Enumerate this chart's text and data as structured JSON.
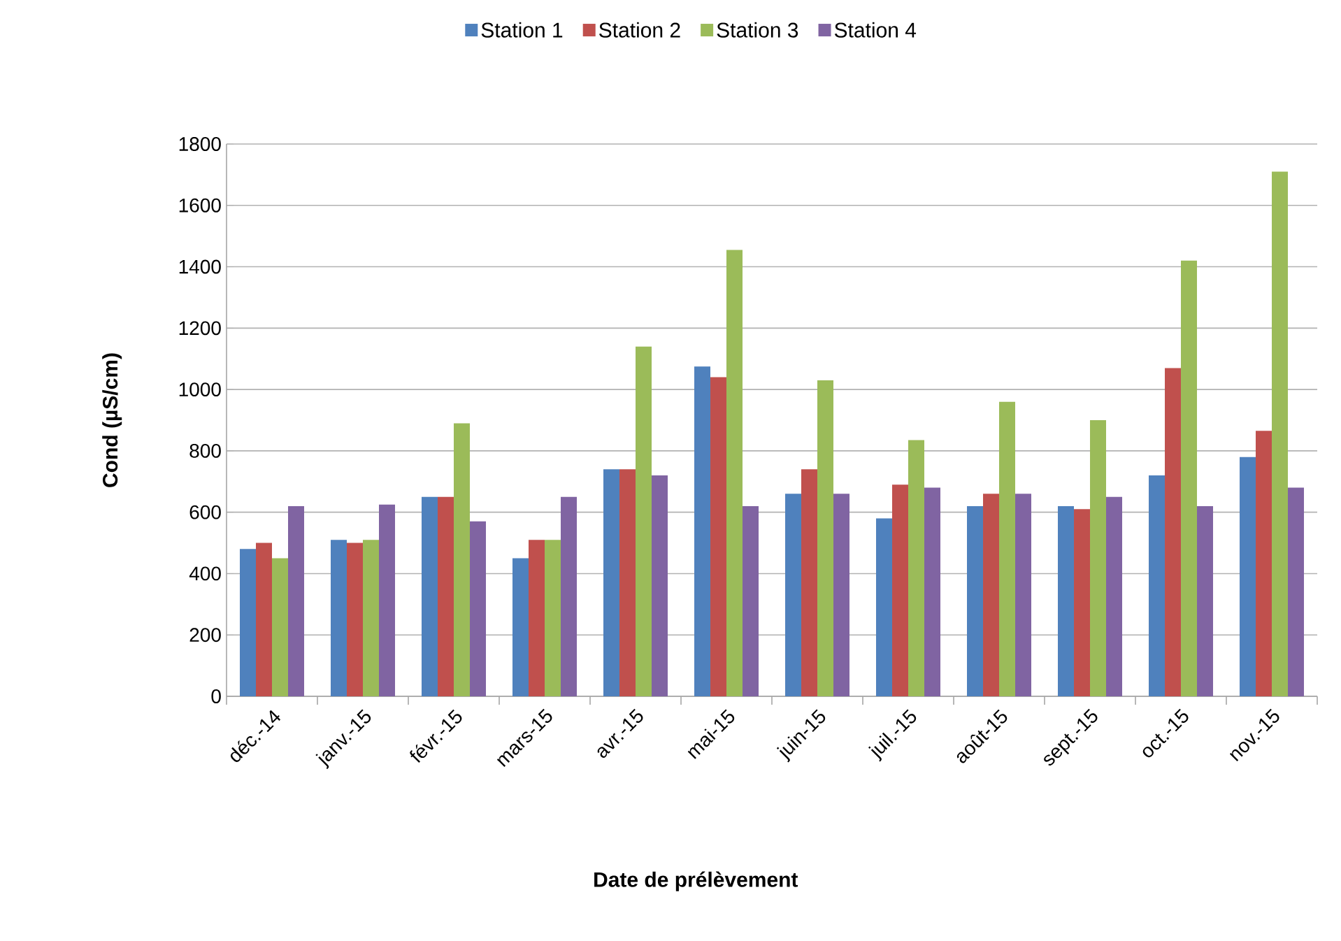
{
  "chart_data": {
    "type": "bar",
    "xlabel": "Date de prélèvement",
    "ylabel": "Cond (µS/cm)",
    "categories": [
      "déc.-14",
      "janv.-15",
      "févr.-15",
      "mars-15",
      "avr.-15",
      "mai-15",
      "juin-15",
      "juil.-15",
      "août-15",
      "sept.-15",
      "oct.-15",
      "nov.-15"
    ],
    "series": [
      {
        "name": "Station 1",
        "color": "#4f81bd",
        "values": [
          480,
          510,
          650,
          450,
          740,
          1075,
          660,
          580,
          620,
          620,
          720,
          780
        ]
      },
      {
        "name": "Station 2",
        "color": "#c0504d",
        "values": [
          500,
          500,
          650,
          510,
          740,
          1040,
          740,
          690,
          660,
          610,
          1070,
          865
        ]
      },
      {
        "name": "Station 3",
        "color": "#9bbb59",
        "values": [
          450,
          510,
          890,
          510,
          1140,
          1455,
          1030,
          835,
          960,
          900,
          1420,
          1710
        ]
      },
      {
        "name": "Station 4",
        "color": "#8064a2",
        "values": [
          620,
          625,
          570,
          650,
          720,
          620,
          660,
          680,
          660,
          650,
          620,
          680
        ]
      }
    ],
    "ylim": [
      0,
      1800
    ],
    "yticks": [
      0,
      200,
      400,
      600,
      800,
      1000,
      1200,
      1400,
      1600,
      1800
    ],
    "grid": "y",
    "legend": "top"
  }
}
